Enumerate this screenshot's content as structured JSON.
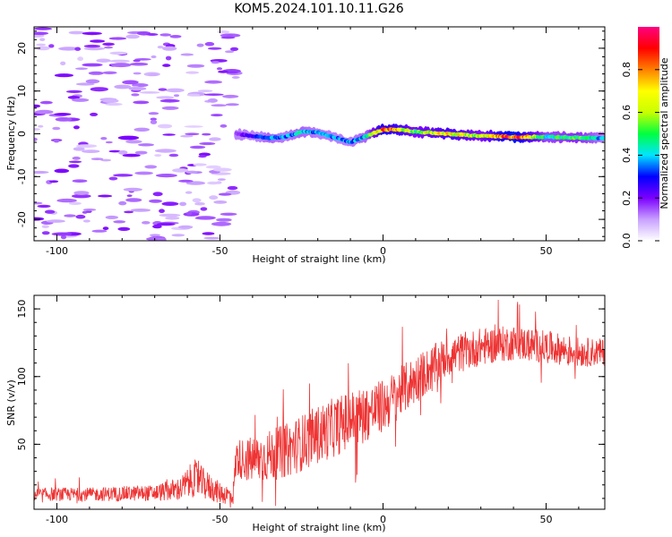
{
  "title": "KOM5.2024.101.10.11.G26",
  "chart_data": [
    {
      "type": "heatmap",
      "xlabel": "Height of straight line (km)",
      "ylabel": "Frequency (Hz)",
      "xlim": [
        -107,
        68
      ],
      "ylim": [
        -25,
        25
      ],
      "x_ticks": [
        -100,
        -50,
        0,
        50
      ],
      "y_ticks": [
        -20,
        -10,
        0,
        10,
        20
      ],
      "colorbar": {
        "label": "Normalized spectral amplitude",
        "range": [
          0,
          1
        ],
        "ticks": [
          0.0,
          0.2,
          0.4,
          0.6,
          0.8
        ],
        "colormap": [
          "#ffffff",
          "#c8a0ff",
          "#7b00ff",
          "#0000ff",
          "#00e5ff",
          "#00ff40",
          "#c8ff00",
          "#ffff00",
          "#ff8000",
          "#ff0000",
          "#ff0080"
        ]
      },
      "signal_track": {
        "x": [
          -45,
          -40,
          -35,
          -30,
          -25,
          -20,
          -15,
          -10,
          -5,
          0,
          5,
          10,
          20,
          30,
          40,
          50,
          60,
          68
        ],
        "frequency": [
          0,
          -0.5,
          -1.0,
          -0.7,
          0.5,
          0.3,
          -0.8,
          -2.0,
          -0.5,
          1.0,
          1.0,
          0.5,
          0.0,
          -0.5,
          -0.7,
          -0.7,
          -0.9,
          -1.0
        ],
        "amplitude": [
          0.15,
          0.25,
          0.4,
          0.35,
          0.4,
          0.35,
          0.35,
          0.35,
          0.4,
          0.8,
          0.7,
          0.55,
          0.7,
          0.55,
          0.9,
          0.45,
          0.5,
          0.35
        ]
      },
      "noise_region": {
        "xlim": [
          -107,
          -45
        ],
        "amplitude_range": [
          0.05,
          0.2
        ]
      }
    },
    {
      "type": "line",
      "xlabel": "Height of straight line (km)",
      "ylabel": "SNR (v/v)",
      "xlim": [
        -107,
        68
      ],
      "ylim": [
        2,
        160
      ],
      "x_ticks": [
        -100,
        -50,
        0,
        50
      ],
      "y_ticks": [
        50,
        100,
        150
      ],
      "color": "#ee3333",
      "trend": {
        "x": [
          -107,
          -90,
          -70,
          -62,
          -58,
          -50,
          -46,
          -45,
          -40,
          -30,
          -20,
          -10,
          0,
          10,
          20,
          30,
          40,
          50,
          60,
          68
        ],
        "y": [
          13,
          13,
          14,
          17,
          25,
          14,
          12,
          40,
          38,
          45,
          57,
          68,
          78,
          98,
          115,
          122,
          125,
          122,
          118,
          118
        ]
      },
      "noise_amplitude": [
        5,
        5,
        6,
        9,
        14,
        8,
        7,
        14,
        18,
        20,
        22,
        22,
        20,
        18,
        15,
        14,
        13,
        12,
        11,
        10
      ]
    }
  ]
}
